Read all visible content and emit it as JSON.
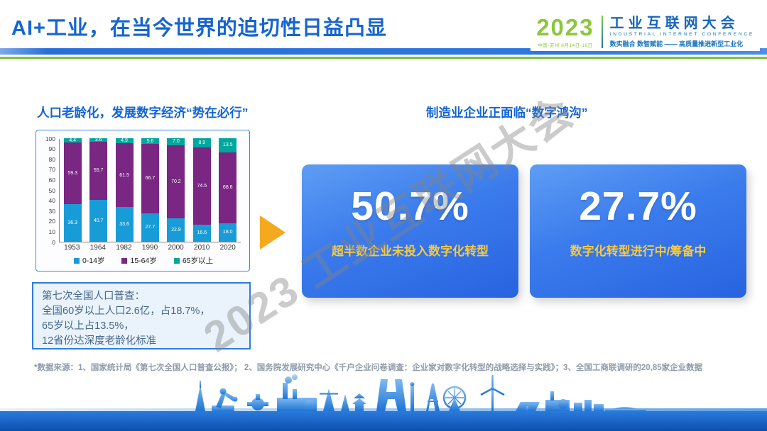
{
  "slide": {
    "title": "AI+工业，在当今世界的迫切性日益凸显",
    "watermark": "2023 工业互联网大会",
    "footnote": "*数据来源：1、国家统计局《第七次全国人口普查公报》；  2、国务院发展研究中心《千户企业问卷调查：企业家对数字化转型的战略选择与实践》；3、全国工商联调研的20,85家企业数据"
  },
  "logo": {
    "year": "2023",
    "venue": "中国·苏州  8月14日-16日",
    "name_cn": "工业互联网大会",
    "name_en": "INDUSTRIAL INTERNET CONFERENCE",
    "tagline": "数实融合  数智赋能 —— 高质量推进新型工业化",
    "green": "#8CC63E",
    "blue": "#1B75BB"
  },
  "left_section": {
    "heading": "人口老龄化，发展数字经济“势在必行”",
    "note_box": {
      "lines": [
        "第七次全国人口普查：",
        "全国60岁以上人口2.6亿，占18.7%，",
        "65岁以上占13.5%，",
        "12省份达深度老龄化标准"
      ]
    }
  },
  "right_section": {
    "heading": "制造业企业正面临“数字鸿沟”",
    "cards": [
      {
        "value": "50.7%",
        "label": "超半数企业未投入数字化转型"
      },
      {
        "value": "27.7%",
        "label": "数字化转型进行中/筹备中"
      }
    ]
  },
  "chart_data": {
    "type": "bar",
    "stacked": true,
    "title": "",
    "xlabel": "",
    "ylabel": "",
    "categories": [
      "1953",
      "1964",
      "1982",
      "1990",
      "2000",
      "2010",
      "2020"
    ],
    "series": [
      {
        "name": "0-14岁",
        "color": "#189CD8",
        "values": [
          36.3,
          40.7,
          33.6,
          27.7,
          22.9,
          16.6,
          18.0
        ]
      },
      {
        "name": "15-64岁",
        "color": "#7A2683",
        "values": [
          59.3,
          55.7,
          61.5,
          66.7,
          70.2,
          74.5,
          68.6
        ]
      },
      {
        "name": "65岁以上",
        "color": "#00A79D",
        "values": [
          4.4,
          3.6,
          4.9,
          5.6,
          7.0,
          8.9,
          13.5
        ]
      }
    ],
    "ylim": [
      0,
      100
    ],
    "yticks": [
      0,
      10,
      20,
      30,
      40,
      50,
      60,
      70,
      80,
      90,
      100
    ],
    "grid": false,
    "legend_position": "bottom"
  },
  "colors": {
    "accent_blue": "#1565D2",
    "card_gradient_top": "#5E9DF4",
    "card_gradient_bottom": "#2863E0",
    "card_label_yellow": "#F6C93F",
    "arrow_yellow": "#F5A91F",
    "rule_blue": "#2E76E0",
    "rule_green": "#7DC242",
    "note_border": "#2F7BDE",
    "note_background": "#EAF3FC"
  }
}
